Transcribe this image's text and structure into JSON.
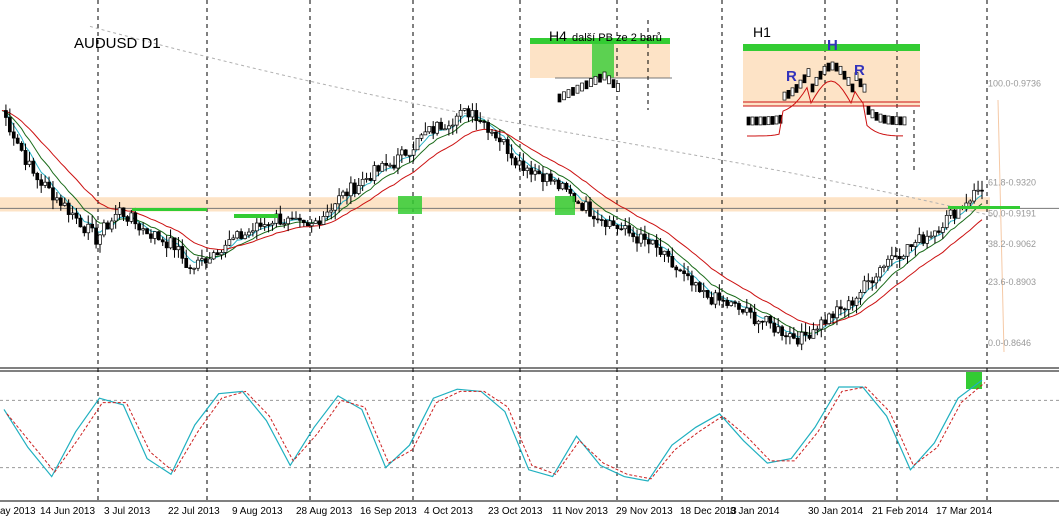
{
  "title": "AUDUSD D1",
  "annotations": {
    "h4": "H4",
    "h4_note": "další PB ze 2 barů",
    "h1": "H1",
    "head": "H",
    "shoulder_left": "R",
    "shoulder_right": "R"
  },
  "colors": {
    "background": "#ffffff",
    "bull_candle": "#ffffff",
    "bear_candle": "#000000",
    "candle_outline": "#000000",
    "ma_fast": "#2ab3c7",
    "ma_mid": "#1a6b1a",
    "ma_slow": "#cc1111",
    "ma_long": "#b0b0b0",
    "zone": "#fde3c6",
    "highlight": "#33cc33",
    "annotation_text": "#3333bb",
    "stoch_main": "#20b0c0",
    "stoch_signal": "#cc2222"
  },
  "chart_data": {
    "type": "candlestick",
    "symbol": "AUDUSD",
    "timeframe": "D1",
    "price_panel": {
      "ylim": [
        0.855,
        1.005
      ],
      "current_price": 0.9208,
      "fib_levels": [
        {
          "label": "100.0-0.9736",
          "value": 0.9736
        },
        {
          "label": "61.8-0.9320",
          "value": 0.932
        },
        {
          "label": "50.0-0.9191",
          "value": 0.9191
        },
        {
          "label": "38.2-0.9062",
          "value": 0.9062
        },
        {
          "label": "23.6-0.8903",
          "value": 0.8903
        },
        {
          "label": "0.0-0.8646",
          "value": 0.8646
        }
      ],
      "resistance_zone": [
        0.9195,
        0.9255
      ],
      "moving_averages": [
        "fast",
        "mid",
        "slow",
        "long"
      ]
    },
    "x_axis_labels": [
      "ay 2013",
      "14 Jun 2013",
      "3 Jul 2013",
      "22 Jul 2013",
      "9 Aug 2013",
      "28 Aug 2013",
      "16 Sep 2013",
      "4 Oct 2013",
      "23 Oct 2013",
      "11 Nov 2013",
      "29 Nov 2013",
      "18 Dec 2013",
      "8 Jan 2014",
      "30 Jan 2014",
      "21 Feb 2014",
      "17 Mar 2014"
    ],
    "close_path": [
      [
        0,
        0.962
      ],
      [
        8,
        0.935
      ],
      [
        16,
        0.922
      ],
      [
        24,
        0.908
      ],
      [
        30,
        0.92
      ],
      [
        36,
        0.912
      ],
      [
        44,
        0.905
      ],
      [
        48,
        0.895
      ],
      [
        56,
        0.905
      ],
      [
        62,
        0.91
      ],
      [
        70,
        0.917
      ],
      [
        78,
        0.912
      ],
      [
        86,
        0.925
      ],
      [
        94,
        0.935
      ],
      [
        100,
        0.94
      ],
      [
        108,
        0.952
      ],
      [
        114,
        0.958
      ],
      [
        120,
        0.962
      ],
      [
        126,
        0.952
      ],
      [
        132,
        0.94
      ],
      [
        138,
        0.935
      ],
      [
        142,
        0.93
      ],
      [
        150,
        0.92
      ],
      [
        158,
        0.912
      ],
      [
        166,
        0.905
      ],
      [
        172,
        0.895
      ],
      [
        178,
        0.885
      ],
      [
        186,
        0.88
      ],
      [
        192,
        0.875
      ],
      [
        198,
        0.87
      ],
      [
        204,
        0.866
      ],
      [
        208,
        0.872
      ],
      [
        216,
        0.88
      ],
      [
        222,
        0.892
      ],
      [
        226,
        0.9
      ],
      [
        232,
        0.905
      ],
      [
        238,
        0.912
      ],
      [
        242,
        0.918
      ],
      [
        246,
        0.924
      ],
      [
        250,
        0.93
      ]
    ],
    "oscillator": {
      "type": "stochastic",
      "ylim": [
        0,
        100
      ],
      "levels": [
        80,
        20
      ],
      "main": [
        72,
        38,
        12,
        52,
        82,
        76,
        28,
        14,
        58,
        86,
        88,
        62,
        22,
        56,
        84,
        72,
        20,
        40,
        82,
        90,
        88,
        70,
        18,
        12,
        48,
        22,
        12,
        8,
        40,
        56,
        68,
        44,
        24,
        28,
        56,
        92,
        92,
        66,
        18,
        42,
        82,
        98
      ],
      "signal": [
        68,
        42,
        16,
        46,
        78,
        78,
        34,
        16,
        52,
        82,
        88,
        66,
        26,
        50,
        80,
        74,
        24,
        36,
        78,
        88,
        88,
        74,
        22,
        14,
        44,
        24,
        14,
        10,
        36,
        52,
        66,
        48,
        26,
        26,
        52,
        88,
        92,
        70,
        22,
        38,
        78,
        96
      ]
    },
    "title": "AUDUSD D1"
  }
}
